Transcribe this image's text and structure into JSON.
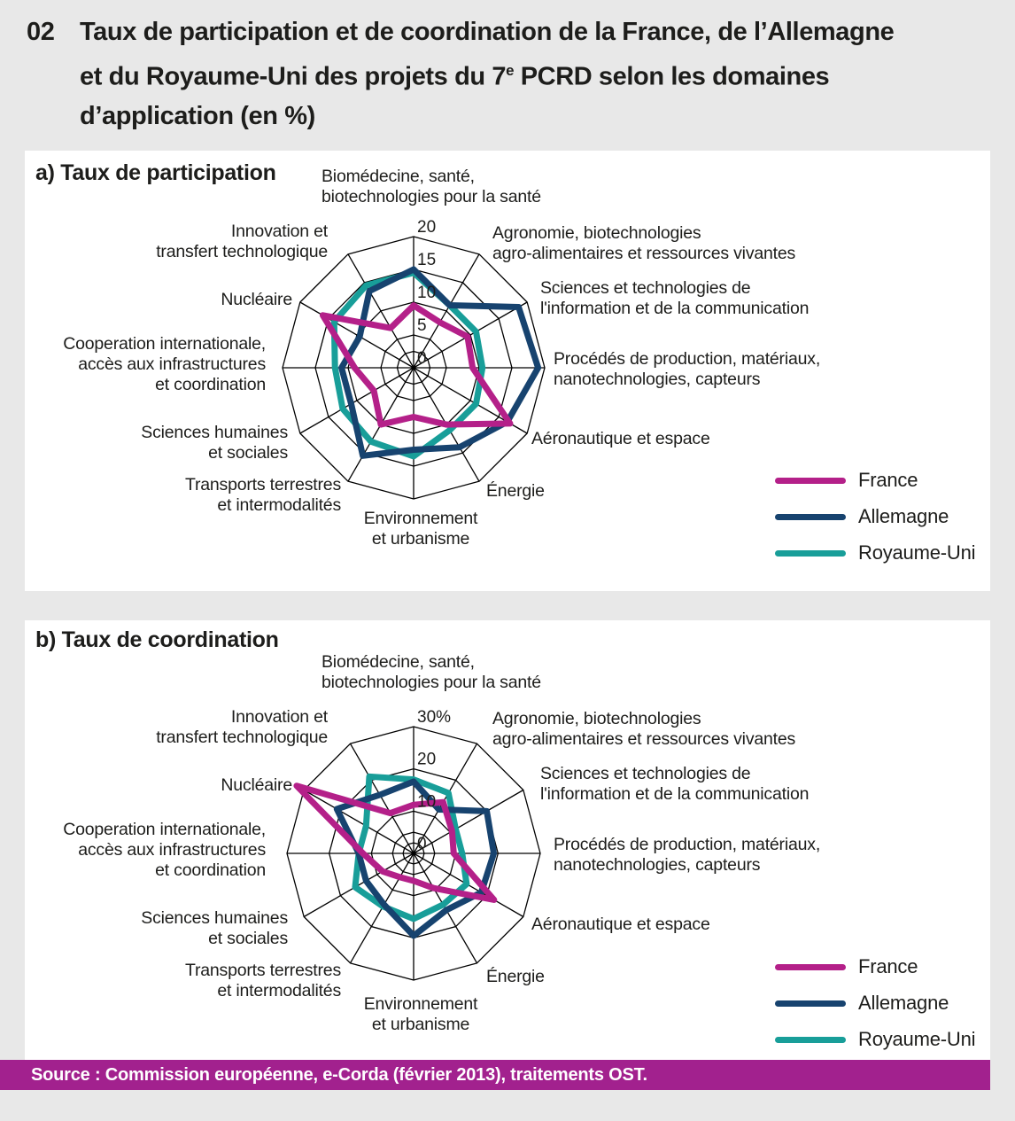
{
  "title": {
    "number": "02",
    "line1": "Taux de participation et de coordination de la France, de l’Allemagne",
    "line2_pre": "et du Royaume-Uni des projets du 7",
    "line2_sup": "e",
    "line2_post": " PCRD selon les domaines",
    "line3": "d’application (en %)"
  },
  "legend": {
    "items": [
      {
        "label": "France",
        "color": "#b42089"
      },
      {
        "label": "Allemagne",
        "color": "#17436f"
      },
      {
        "label": "Royaume-Uni",
        "color": "#189e99"
      }
    ]
  },
  "source": {
    "text": "Source : Commission européenne, e-Corda (février 2013), traitements OST.",
    "bar_color": "#a2218e"
  },
  "chart_data": [
    {
      "id": "a",
      "type": "radar",
      "title": "a) Taux de participation",
      "unit": "%",
      "max": 20,
      "grid_rings": [
        2.5,
        5,
        10,
        15,
        20
      ],
      "ticks": [
        {
          "value": 0,
          "label": "0"
        },
        {
          "value": 5,
          "label": "5"
        },
        {
          "value": 10,
          "label": "10"
        },
        {
          "value": 15,
          "label": "15"
        },
        {
          "value": 20,
          "label": "20"
        }
      ],
      "categories": [
        "Biomédecine, santé,\nbiotechnologies pour la santé",
        "Agronomie, biotechnologies\nagro-alimentaires et ressources vivantes",
        "Sciences et technologies de\nl'information et de la communication",
        "Procédés de production, matériaux,\nnanotechnologies, capteurs",
        "Aéronautique et espace",
        "Énergie",
        "Environnement\net urbanisme",
        "Transports terrestres\net intermodalités",
        "Sciences humaines\net sociales",
        "Cooperation internationale,\naccès aux infrastructures\net coordination",
        "Nucléaire",
        "Innovation et\ntransfert technologique"
      ],
      "series": [
        {
          "name": "France",
          "color": "#b42089",
          "values": [
            9.5,
            8,
            9.5,
            9,
            17,
            10,
            7.5,
            10,
            7,
            9,
            16,
            7
          ]
        },
        {
          "name": "Allemagne",
          "color": "#17436f",
          "values": [
            15,
            11,
            18.5,
            19,
            16.5,
            14,
            12.5,
            15.5,
            11,
            11,
            9.5,
            13.5
          ]
        },
        {
          "name": "Royaume-Uni",
          "color": "#189e99",
          "values": [
            14.5,
            11,
            11,
            10.5,
            11,
            11,
            13.5,
            13,
            12.5,
            12,
            14,
            14.5
          ]
        }
      ]
    },
    {
      "id": "b",
      "type": "radar",
      "title": "b) Taux de coordination",
      "unit": "%",
      "max": 30,
      "grid_rings": [
        2.5,
        5,
        10,
        20,
        30
      ],
      "ticks": [
        {
          "value": 0,
          "label": "0"
        },
        {
          "value": 10,
          "label": "10"
        },
        {
          "value": 20,
          "label": "20"
        },
        {
          "value": 30,
          "label": "30%"
        }
      ],
      "categories": [
        "Biomédecine, santé,\nbiotechnologies pour la santé",
        "Agronomie, biotechnologies\nagro-alimentaires et ressources vivantes",
        "Sciences et technologies de\nl'information et de la communication",
        "Procédés de production, matériaux,\nnanotechnologies, capteurs",
        "Aéronautique et espace",
        "Énergie",
        "Environnement\net urbanisme",
        "Transports terrestres\net intermodalités",
        "Sciences humaines\net sociales",
        "Cooperation internationale,\naccès aux infrastructures\net coordination",
        "Nucléaire",
        "Innovation et\ntransfert technologique"
      ],
      "series": [
        {
          "name": "France",
          "color": "#b42089",
          "values": [
            11.5,
            14,
            10.5,
            9.5,
            22,
            9.5,
            6.5,
            6.5,
            8.5,
            12,
            32,
            11
          ]
        },
        {
          "name": "Allemagne",
          "color": "#17436f",
          "values": [
            17,
            12,
            20,
            19,
            18.5,
            15.5,
            19.5,
            14,
            13,
            13,
            21,
            16
          ]
        },
        {
          "name": "Royaume-Uni",
          "color": "#189e99",
          "values": [
            17.5,
            16.5,
            11.5,
            11.5,
            14.5,
            14,
            15.5,
            14.5,
            16,
            13,
            13,
            21
          ]
        }
      ]
    }
  ]
}
